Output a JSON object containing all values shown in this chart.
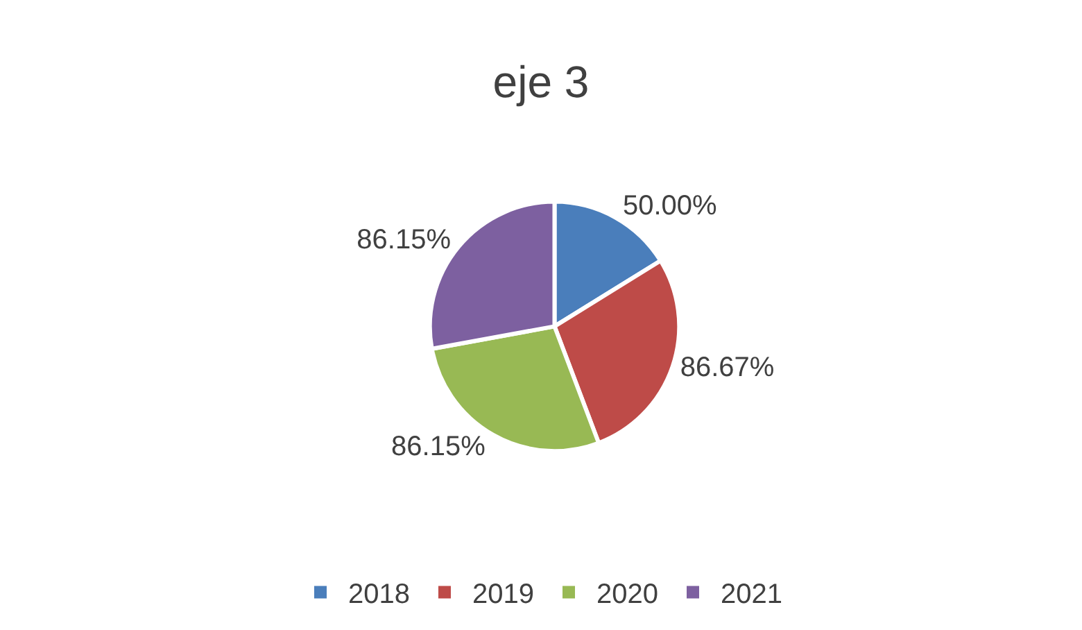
{
  "chart_data": {
    "type": "pie",
    "title": "eje 3",
    "categories": [
      "2018",
      "2019",
      "2020",
      "2021"
    ],
    "values": [
      50.0,
      86.67,
      86.15,
      86.15
    ],
    "value_labels": [
      "50.00%",
      "86.67%",
      "86.15%",
      "86.15%"
    ],
    "colors": [
      "#4a7ebb",
      "#be4b48",
      "#98b954",
      "#7d60a0"
    ],
    "legend": "bottom"
  }
}
